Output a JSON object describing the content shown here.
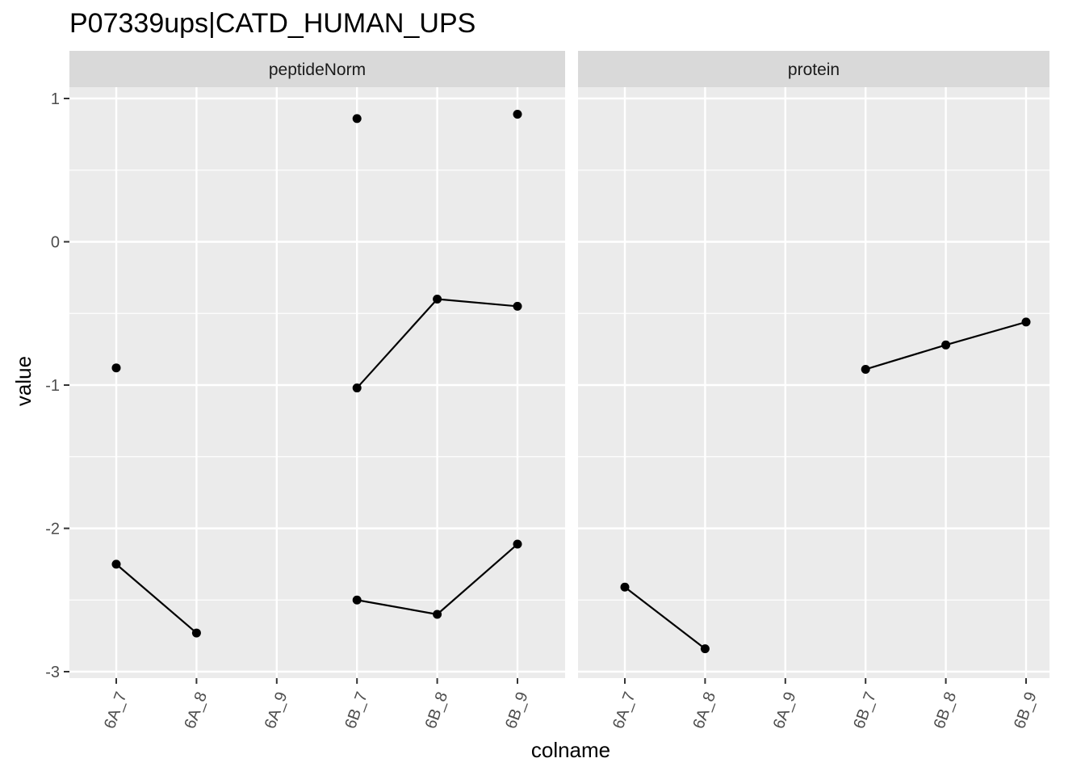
{
  "chart_data": {
    "type": "line",
    "title": "P07339ups|CATD_HUMAN_UPS",
    "xlabel": "colname",
    "ylabel": "value",
    "ylim": [
      -3,
      1
    ],
    "yticks": [
      "1",
      "0",
      "-1",
      "-2",
      "-3"
    ],
    "categories": [
      "6A_7",
      "6A_8",
      "6A_9",
      "6B_7",
      "6B_8",
      "6B_9"
    ],
    "grid": true,
    "panels": [
      {
        "name": "peptideNorm",
        "series": [
          {
            "values": [
              -0.88,
              null,
              null,
              0.86,
              null,
              0.89
            ]
          },
          {
            "values": [
              null,
              null,
              null,
              -1.02,
              -0.4,
              -0.45
            ]
          },
          {
            "values": [
              -2.25,
              -2.73,
              null,
              -2.5,
              -2.6,
              -2.11
            ]
          }
        ]
      },
      {
        "name": "protein",
        "series": [
          {
            "values": [
              -2.41,
              -2.84,
              null,
              -0.89,
              -0.72,
              -0.56
            ]
          }
        ]
      }
    ]
  }
}
